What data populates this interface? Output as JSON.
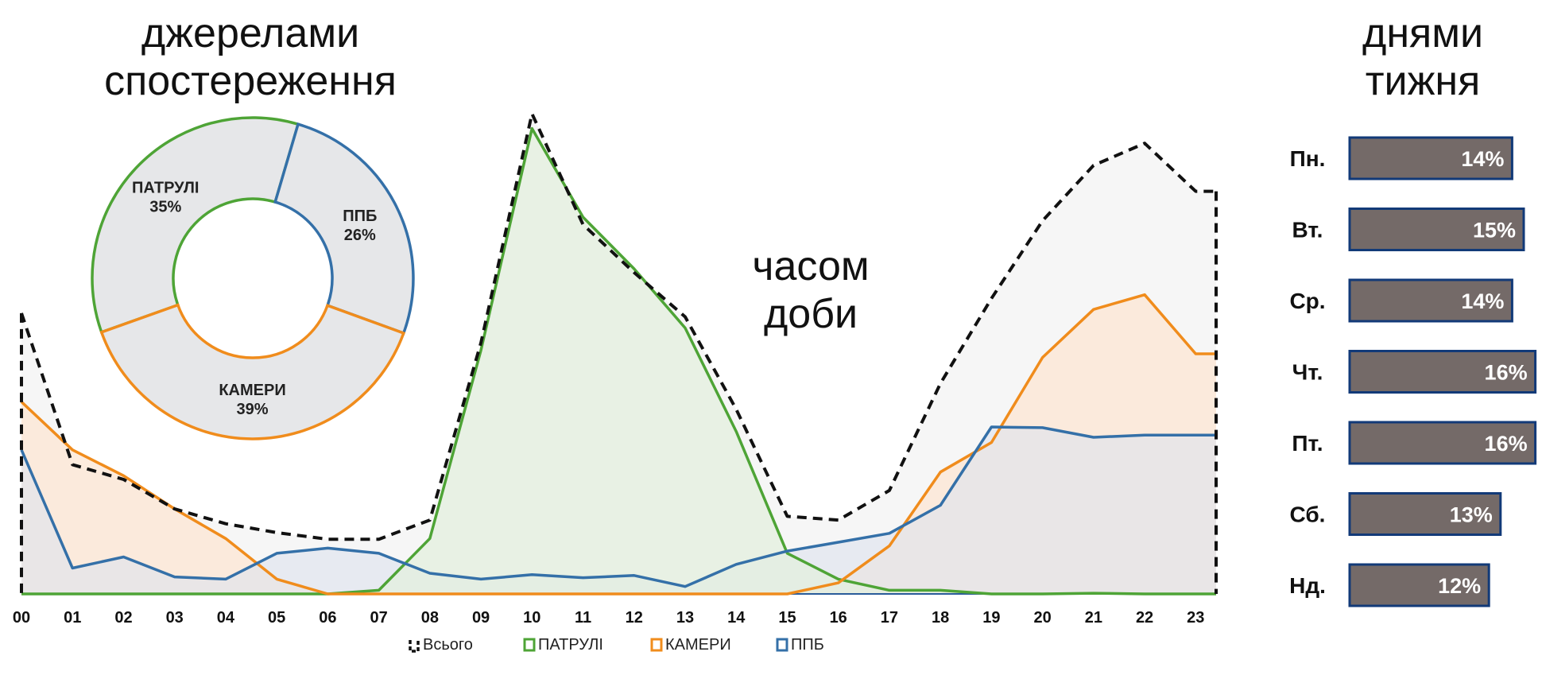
{
  "headings": {
    "sources": [
      "джерелами",
      "спостереження"
    ],
    "time": [
      "часом",
      "доби"
    ],
    "days": [
      "днями",
      "тижня"
    ]
  },
  "colors": {
    "patrol": "#4ea436",
    "cameras": "#f08c1c",
    "ppb": "#3470a8",
    "total": "#111111",
    "bar_fill": "#746a68",
    "bar_border": "#123a78",
    "donut_fill": "#e6e7e9"
  },
  "chart_data": [
    {
      "type": "pie",
      "variant": "donut",
      "slices": [
        {
          "label": "ПАТРУЛІ",
          "value": 35,
          "value_label": "35%",
          "color": "#4ea436"
        },
        {
          "label": "ППБ",
          "value": 26,
          "value_label": "26%",
          "color": "#3470a8"
        },
        {
          "label": "КАМЕРИ",
          "value": 39,
          "value_label": "39%",
          "color": "#f08c1c"
        }
      ]
    },
    {
      "type": "area",
      "categories": [
        "00",
        "01",
        "02",
        "03",
        "04",
        "05",
        "06",
        "07",
        "08",
        "09",
        "10",
        "11",
        "12",
        "13",
        "14",
        "15",
        "16",
        "17",
        "18",
        "19",
        "20",
        "21",
        "22",
        "23"
      ],
      "series": [
        {
          "name": "Всього",
          "style": "dashed",
          "color": "#111111",
          "values": [
            3.8,
            1.75,
            1.55,
            1.15,
            0.95,
            0.83,
            0.74,
            0.74,
            1.0,
            3.4,
            6.5,
            5.0,
            4.35,
            3.75,
            2.5,
            1.05,
            1.0,
            1.4,
            2.85,
            4.0,
            5.05,
            5.8,
            6.1,
            5.45
          ]
        },
        {
          "name": "ПАТРУЛІ",
          "color": "#4ea436",
          "values": [
            0,
            0,
            0,
            0,
            0,
            0,
            0,
            0.05,
            0.75,
            3.3,
            6.3,
            5.1,
            4.4,
            3.6,
            2.2,
            0.55,
            0.2,
            0.05,
            0.05,
            0,
            0,
            0.01,
            0,
            0
          ]
        },
        {
          "name": "КАМЕРИ",
          "color": "#f08c1c",
          "values": [
            2.6,
            1.95,
            1.6,
            1.15,
            0.75,
            0.2,
            0,
            0,
            0,
            0,
            0,
            0,
            0,
            0,
            0,
            0,
            0.15,
            0.65,
            1.65,
            2.05,
            3.2,
            3.85,
            4.05,
            3.25
          ]
        },
        {
          "name": "ППБ",
          "color": "#3470a8",
          "values": [
            1.95,
            0.35,
            0.5,
            0.23,
            0.2,
            0.55,
            0.62,
            0.55,
            0.28,
            0.2,
            0.26,
            0.22,
            0.25,
            0.1,
            0.4,
            0.58,
            0.7,
            0.82,
            1.2,
            2.26,
            2.25,
            2.12,
            2.15,
            2.15
          ]
        }
      ],
      "x_tick_labels": [
        "00",
        "01",
        "02",
        "03",
        "04",
        "05",
        "06",
        "07",
        "08",
        "09",
        "10",
        "11",
        "12",
        "13",
        "14",
        "15",
        "16",
        "17",
        "18",
        "19",
        "20",
        "21",
        "22",
        "23"
      ],
      "legend": [
        "Всього",
        "ПАТРУЛІ",
        "КАМЕРИ",
        "ППБ"
      ],
      "legend_position": "bottom",
      "ylim": [
        0,
        6.5
      ],
      "grid": false
    },
    {
      "type": "bar",
      "orientation": "horizontal",
      "categories": [
        "Пн.",
        "Вт.",
        "Ср.",
        "Чт.",
        "Пт.",
        "Сб.",
        "Нд."
      ],
      "values": [
        14,
        15,
        14,
        16,
        16,
        13,
        12
      ],
      "value_labels": [
        "14%",
        "15%",
        "14%",
        "16%",
        "16%",
        "13%",
        "12%"
      ]
    }
  ]
}
